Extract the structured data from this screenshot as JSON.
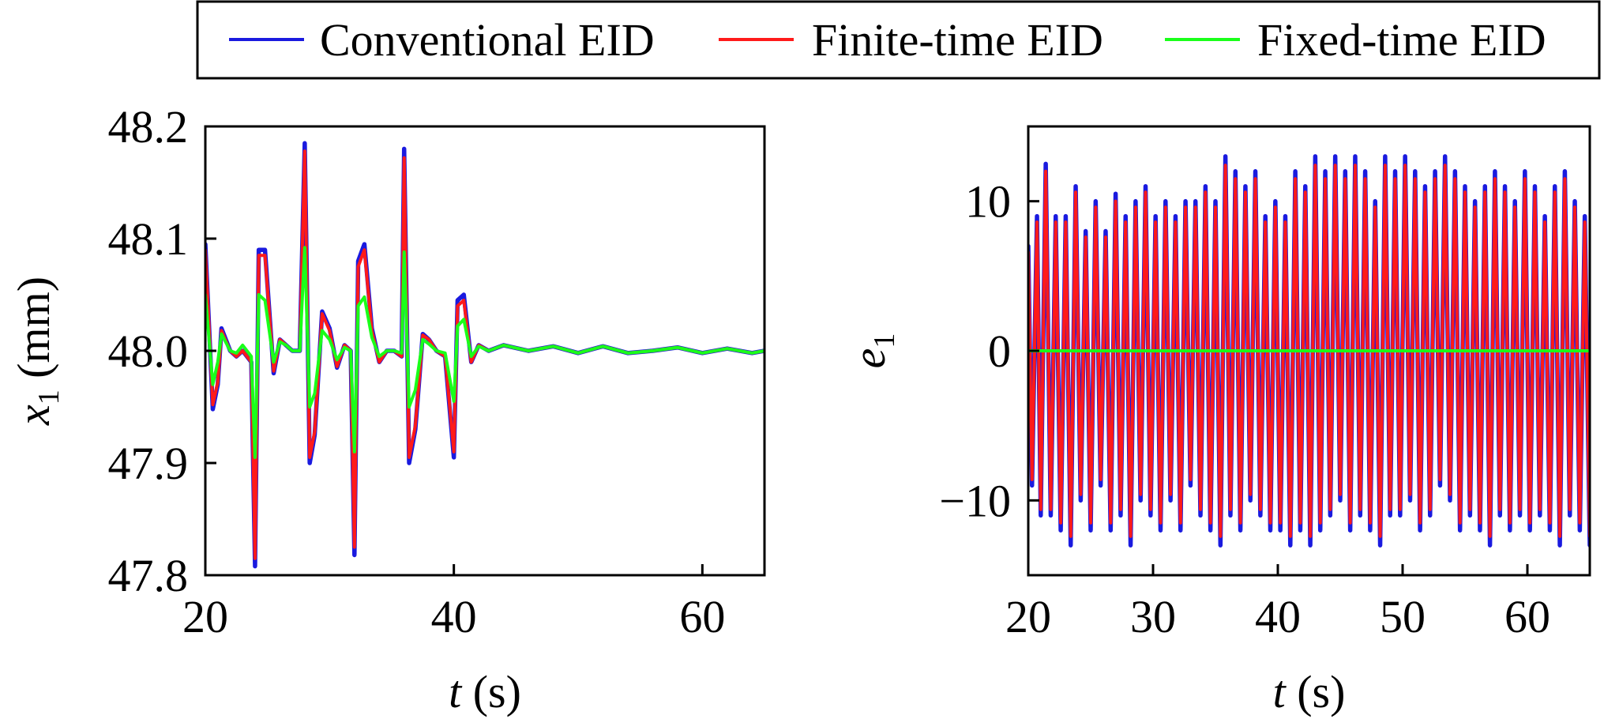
{
  "legend": {
    "entries": [
      {
        "label": "Conventional EID",
        "color": "#1a1adf"
      },
      {
        "label": "Finite-time EID",
        "color": "#ff1a1a"
      },
      {
        "label": "Fixed-time EID",
        "color": "#1aff1a"
      }
    ]
  },
  "chart_data": [
    {
      "type": "line",
      "xlabel": {
        "var": "t",
        "unit": " (s)"
      },
      "ylabel": {
        "var": "x",
        "sub": "1",
        "unit": " (mm)"
      },
      "xlim": [
        20,
        65
      ],
      "ylim": [
        47.8,
        48.2
      ],
      "xticks": [
        20,
        40,
        60
      ],
      "xtick_labels": [
        "20",
        "40",
        "60"
      ],
      "yticks": [
        47.8,
        47.9,
        48.0,
        48.1,
        48.2
      ],
      "ytick_labels": [
        "47.8",
        "47.9",
        "48.0",
        "48.1",
        "48.2"
      ],
      "grid": false,
      "series": [
        {
          "name": "Conventional EID",
          "x": [
            20,
            20.6,
            21,
            21.3,
            22,
            22.5,
            23,
            23.7,
            24.0,
            24.3,
            24.8,
            25.5,
            26,
            26.5,
            27,
            27.6,
            28.0,
            28.4,
            28.8,
            29.4,
            30,
            30.6,
            31.2,
            31.7,
            32.0,
            32.3,
            32.8,
            33.4,
            34,
            34.6,
            35.2,
            35.8,
            36.0,
            36.4,
            36.9,
            37.5,
            38,
            38.6,
            39.3,
            40.0,
            40.3,
            40.8,
            41.4,
            42,
            42.8,
            44,
            46,
            48,
            50,
            52,
            54,
            56,
            58,
            60,
            62,
            64,
            65
          ],
          "y": [
            48.095,
            47.948,
            47.97,
            48.02,
            48.0,
            47.995,
            48.0,
            47.99,
            47.808,
            48.09,
            48.09,
            47.98,
            48.01,
            48.005,
            48.0,
            48.0,
            48.185,
            47.9,
            47.925,
            48.035,
            48.02,
            47.985,
            48.005,
            48.0,
            47.818,
            48.08,
            48.095,
            48.02,
            47.99,
            48.0,
            48.0,
            47.995,
            48.18,
            47.9,
            47.93,
            48.015,
            48.01,
            48.0,
            47.995,
            47.905,
            48.045,
            48.05,
            47.99,
            48.005,
            48.0,
            48.005,
            48.0,
            48.004,
            47.998,
            48.004,
            47.998,
            48.0,
            48.003,
            47.998,
            48.002,
            47.998,
            48.0
          ]
        },
        {
          "name": "Finite-time EID",
          "x": [
            20,
            20.6,
            21,
            21.3,
            22,
            22.5,
            23,
            23.7,
            24.0,
            24.3,
            24.8,
            25.5,
            26,
            26.5,
            27,
            27.6,
            28.0,
            28.4,
            28.8,
            29.4,
            30,
            30.6,
            31.2,
            31.7,
            32.0,
            32.3,
            32.8,
            33.4,
            34,
            34.6,
            35.2,
            35.8,
            36.0,
            36.4,
            36.9,
            37.5,
            38,
            38.6,
            39.3,
            40.0,
            40.3,
            40.8,
            41.4,
            42,
            42.8,
            44,
            46,
            48,
            50,
            52,
            54,
            56,
            58,
            60,
            62,
            64,
            65
          ],
          "y": [
            48.09,
            47.952,
            47.972,
            48.018,
            48.0,
            47.995,
            48.0,
            47.99,
            47.815,
            48.085,
            48.085,
            47.982,
            48.01,
            48.005,
            48.0,
            48.0,
            48.178,
            47.905,
            47.928,
            48.033,
            48.018,
            47.986,
            48.005,
            48.0,
            47.825,
            48.075,
            48.09,
            48.018,
            47.99,
            48.0,
            48.0,
            47.995,
            48.172,
            47.905,
            47.933,
            48.014,
            48.01,
            48.0,
            47.995,
            47.91,
            48.04,
            48.045,
            47.99,
            48.005,
            48.0,
            48.005,
            48.0,
            48.004,
            47.998,
            48.004,
            47.998,
            48.0,
            48.003,
            47.998,
            48.002,
            47.998,
            48.0
          ]
        },
        {
          "name": "Fixed-time EID",
          "x": [
            20,
            20.6,
            21,
            21.3,
            22,
            22.5,
            23,
            23.7,
            24.0,
            24.3,
            24.8,
            25.5,
            26,
            26.5,
            27,
            27.6,
            28.0,
            28.4,
            28.8,
            29.4,
            30,
            30.6,
            31.2,
            31.7,
            32.0,
            32.3,
            32.8,
            33.4,
            34,
            34.6,
            35.2,
            35.8,
            36.0,
            36.4,
            36.9,
            37.5,
            38,
            38.6,
            39.3,
            40.0,
            40.3,
            40.8,
            41.4,
            42,
            42.8,
            44,
            46,
            48,
            50,
            52,
            54,
            56,
            58,
            60,
            62,
            64,
            65
          ],
          "y": [
            48.05,
            47.97,
            47.99,
            48.015,
            48.0,
            47.998,
            48.005,
            47.995,
            47.905,
            48.05,
            48.045,
            47.99,
            48.008,
            48.005,
            48.0,
            48.0,
            48.092,
            47.95,
            47.962,
            48.018,
            48.01,
            47.992,
            48.003,
            48.0,
            47.91,
            48.04,
            48.048,
            48.012,
            47.995,
            48.0,
            48.0,
            47.998,
            48.088,
            47.95,
            47.965,
            48.01,
            48.006,
            48.0,
            47.998,
            47.955,
            48.022,
            48.028,
            47.995,
            48.004,
            48.0,
            48.005,
            48.0,
            48.004,
            47.998,
            48.004,
            47.998,
            48.0,
            48.003,
            47.998,
            48.002,
            47.998,
            48.0
          ]
        }
      ]
    },
    {
      "type": "line",
      "xlabel": {
        "var": "t",
        "unit": " (s)"
      },
      "ylabel": {
        "var": "e",
        "sub": "1",
        "unit": ""
      },
      "xlim": [
        20,
        65
      ],
      "ylim": [
        -15,
        15
      ],
      "xticks": [
        20,
        30,
        40,
        50,
        60
      ],
      "xtick_labels": [
        "20",
        "30",
        "40",
        "50",
        "60"
      ],
      "yticks": [
        -10,
        0,
        10
      ],
      "ytick_labels": [
        "−10",
        "0",
        "10"
      ],
      "grid": false,
      "series": [
        {
          "name": "Conventional EID",
          "x": [
            20,
            20.3,
            20.7,
            21.0,
            21.4,
            21.8,
            22.2,
            22.6,
            23.0,
            23.4,
            23.8,
            24.2,
            24.6,
            25.0,
            25.4,
            25.8,
            26.2,
            26.6,
            27.0,
            27.4,
            27.8,
            28.2,
            28.6,
            29.0,
            29.4,
            29.8,
            30.2,
            30.6,
            31.0,
            31.4,
            31.8,
            32.2,
            32.6,
            33.0,
            33.4,
            33.8,
            34.2,
            34.6,
            35.0,
            35.4,
            35.8,
            36.2,
            36.6,
            37.0,
            37.4,
            37.8,
            38.2,
            38.6,
            39.0,
            39.4,
            39.8,
            40.2,
            40.6,
            41.0,
            41.4,
            41.8,
            42.2,
            42.6,
            43.0,
            43.4,
            43.8,
            44.2,
            44.6,
            45.0,
            45.4,
            45.8,
            46.2,
            46.6,
            47.0,
            47.4,
            47.8,
            48.2,
            48.6,
            49.0,
            49.4,
            49.8,
            50.2,
            50.6,
            51.0,
            51.4,
            51.8,
            52.2,
            52.6,
            53.0,
            53.4,
            53.8,
            54.2,
            54.6,
            55.0,
            55.4,
            55.8,
            56.2,
            56.6,
            57.0,
            57.4,
            57.8,
            58.2,
            58.6,
            59.0,
            59.4,
            59.8,
            60.2,
            60.6,
            61.0,
            61.4,
            61.8,
            62.2,
            62.6,
            63.0,
            63.4,
            63.8,
            64.2,
            64.6,
            65.0
          ],
          "y": [
            7,
            -9,
            9,
            -11,
            12.5,
            -11,
            9,
            -12,
            9,
            -13,
            11,
            -10,
            8,
            -12,
            10,
            -9,
            8,
            -12,
            10.5,
            -11,
            9,
            -13,
            10,
            -10,
            11,
            -11,
            9,
            -12,
            10,
            -10,
            9,
            -12,
            10,
            -9,
            10,
            -11,
            11,
            -12,
            10,
            -13,
            13,
            -11,
            12,
            -12,
            11,
            -10,
            12,
            -11,
            9,
            -12,
            10,
            -12,
            9,
            -13,
            12,
            -12,
            11,
            -13,
            13,
            -12,
            12,
            -11,
            13,
            -10,
            12,
            -12,
            13,
            -11,
            12,
            -12,
            10,
            -13,
            13,
            -11,
            12,
            -11,
            13,
            -10,
            12,
            -12,
            11,
            -11,
            12,
            -9,
            13,
            -10,
            12,
            -12,
            11,
            -11,
            10,
            -12,
            11,
            -13,
            12,
            -11,
            11,
            -12,
            10,
            -11,
            12,
            -12,
            11,
            -11,
            9,
            -12,
            11,
            -13,
            12,
            -11,
            10,
            -12,
            9,
            -13
          ]
        },
        {
          "name": "Finite-time EID",
          "x": [
            20,
            20.3,
            20.7,
            21.0,
            21.4,
            21.8,
            22.2,
            22.6,
            23.0,
            23.4,
            23.8,
            24.2,
            24.6,
            25.0,
            25.4,
            25.8,
            26.2,
            26.6,
            27.0,
            27.4,
            27.8,
            28.2,
            28.6,
            29.0,
            29.4,
            29.8,
            30.2,
            30.6,
            31.0,
            31.4,
            31.8,
            32.2,
            32.6,
            33.0,
            33.4,
            33.8,
            34.2,
            34.6,
            35.0,
            35.4,
            35.8,
            36.2,
            36.6,
            37.0,
            37.4,
            37.8,
            38.2,
            38.6,
            39.0,
            39.4,
            39.8,
            40.2,
            40.6,
            41.0,
            41.4,
            41.8,
            42.2,
            42.6,
            43.0,
            43.4,
            43.8,
            44.2,
            44.6,
            45.0,
            45.4,
            45.8,
            46.2,
            46.6,
            47.0,
            47.4,
            47.8,
            48.2,
            48.6,
            49.0,
            49.4,
            49.8,
            50.2,
            50.6,
            51.0,
            51.4,
            51.8,
            52.2,
            52.6,
            53.0,
            53.4,
            53.8,
            54.2,
            54.6,
            55.0,
            55.4,
            55.8,
            56.2,
            56.6,
            57.0,
            57.4,
            57.8,
            58.2,
            58.6,
            59.0,
            59.4,
            59.8,
            60.2,
            60.6,
            61.0,
            61.4,
            61.8,
            62.2,
            62.6,
            63.0,
            63.4,
            63.8,
            64.2,
            64.6,
            65.0
          ],
          "y": [
            6.6,
            -8.6,
            8.6,
            -10.6,
            12,
            -10.6,
            8.6,
            -11.5,
            8.6,
            -12.4,
            10.6,
            -9.6,
            7.6,
            -11.5,
            9.6,
            -8.6,
            7.6,
            -11.5,
            10,
            -10.6,
            8.6,
            -12.4,
            9.6,
            -9.6,
            10.6,
            -10.6,
            8.6,
            -11.5,
            9.6,
            -9.6,
            8.6,
            -11.5,
            9.6,
            -8.6,
            9.6,
            -10.6,
            10.6,
            -11.5,
            9.6,
            -12.4,
            12.4,
            -10.6,
            11.5,
            -11.5,
            10.6,
            -9.6,
            11.5,
            -10.6,
            8.6,
            -11.5,
            9.6,
            -11.5,
            8.6,
            -12.4,
            11.5,
            -11.5,
            10.6,
            -12.4,
            12.4,
            -11.5,
            11.5,
            -10.6,
            12.4,
            -9.6,
            11.5,
            -11.5,
            12.4,
            -10.6,
            11.5,
            -11.5,
            9.6,
            -12.4,
            12.4,
            -10.6,
            11.5,
            -10.6,
            12.4,
            -9.6,
            11.5,
            -11.5,
            10.6,
            -10.6,
            11.5,
            -8.6,
            12.4,
            -9.6,
            11.5,
            -11.5,
            10.6,
            -10.6,
            9.6,
            -11.5,
            10.6,
            -12.4,
            11.5,
            -10.6,
            10.6,
            -11.5,
            9.6,
            -10.6,
            11.5,
            -11.5,
            10.6,
            -10.6,
            8.6,
            -11.5,
            10.6,
            -12.4,
            11.5,
            -10.6,
            9.6,
            -11.5,
            8.6,
            -12.4
          ]
        },
        {
          "name": "Fixed-time EID",
          "x": [
            20,
            65
          ],
          "y": [
            0,
            0
          ]
        }
      ]
    }
  ]
}
